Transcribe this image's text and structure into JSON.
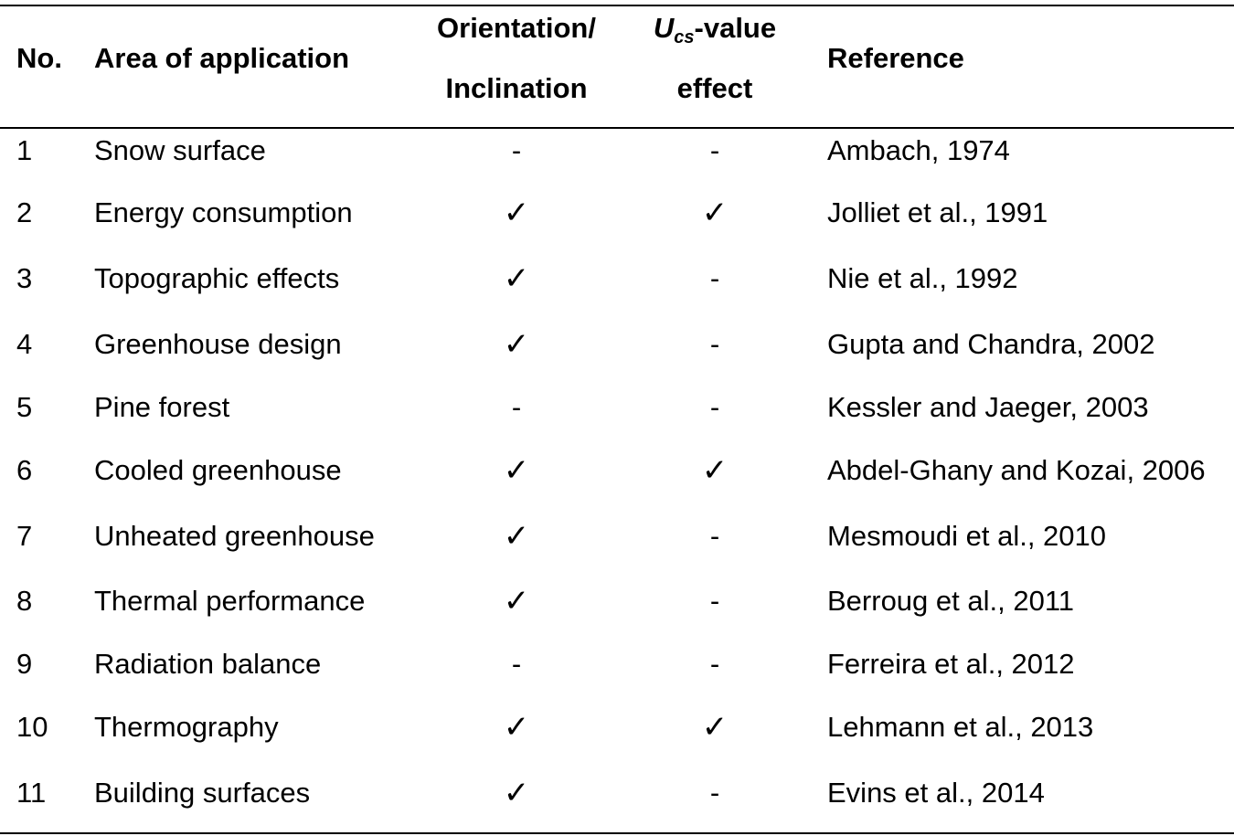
{
  "header": {
    "no": "No.",
    "area": "Area of application",
    "orientation_line1": "Orientation/",
    "orientation_line2": "Inclination",
    "ucs_symbol": "U",
    "ucs_subscript": "cs",
    "ucs_rest": "-value",
    "ucs_line2": "effect",
    "reference": "Reference"
  },
  "rows": [
    {
      "no": "1",
      "area": "Snow surface",
      "orientation": "-",
      "ucs": "-",
      "reference": "Ambach, 1974"
    },
    {
      "no": "2",
      "area": "Energy consumption",
      "orientation": "✓",
      "ucs": "✓",
      "reference": "Jolliet et al., 1991"
    },
    {
      "no": "3",
      "area": "Topographic effects",
      "orientation": "✓",
      "ucs": "-",
      "reference": "Nie et al., 1992"
    },
    {
      "no": "4",
      "area": "Greenhouse design",
      "orientation": "✓",
      "ucs": "-",
      "reference": "Gupta and Chandra, 2002"
    },
    {
      "no": "5",
      "area": "Pine forest",
      "orientation": "-",
      "ucs": "-",
      "reference": "Kessler and Jaeger, 2003"
    },
    {
      "no": "6",
      "area": "Cooled greenhouse",
      "orientation": "✓",
      "ucs": "✓",
      "reference": "Abdel-Ghany and Kozai, 2006"
    },
    {
      "no": "7",
      "area": "Unheated greenhouse",
      "orientation": "✓",
      "ucs": "-",
      "reference": "Mesmoudi et al., 2010"
    },
    {
      "no": "8",
      "area": "Thermal performance",
      "orientation": "✓",
      "ucs": "-",
      "reference": "Berroug et al., 2011"
    },
    {
      "no": "9",
      "area": "Radiation balance",
      "orientation": "-",
      "ucs": "-",
      "reference": "Ferreira et al., 2012"
    },
    {
      "no": "10",
      "area": "Thermography",
      "orientation": "✓",
      "ucs": "✓",
      "reference": "Lehmann et al., 2013"
    },
    {
      "no": "11",
      "area": "Building surfaces",
      "orientation": "✓",
      "ucs": "-",
      "reference": "Evins et al., 2014"
    }
  ]
}
